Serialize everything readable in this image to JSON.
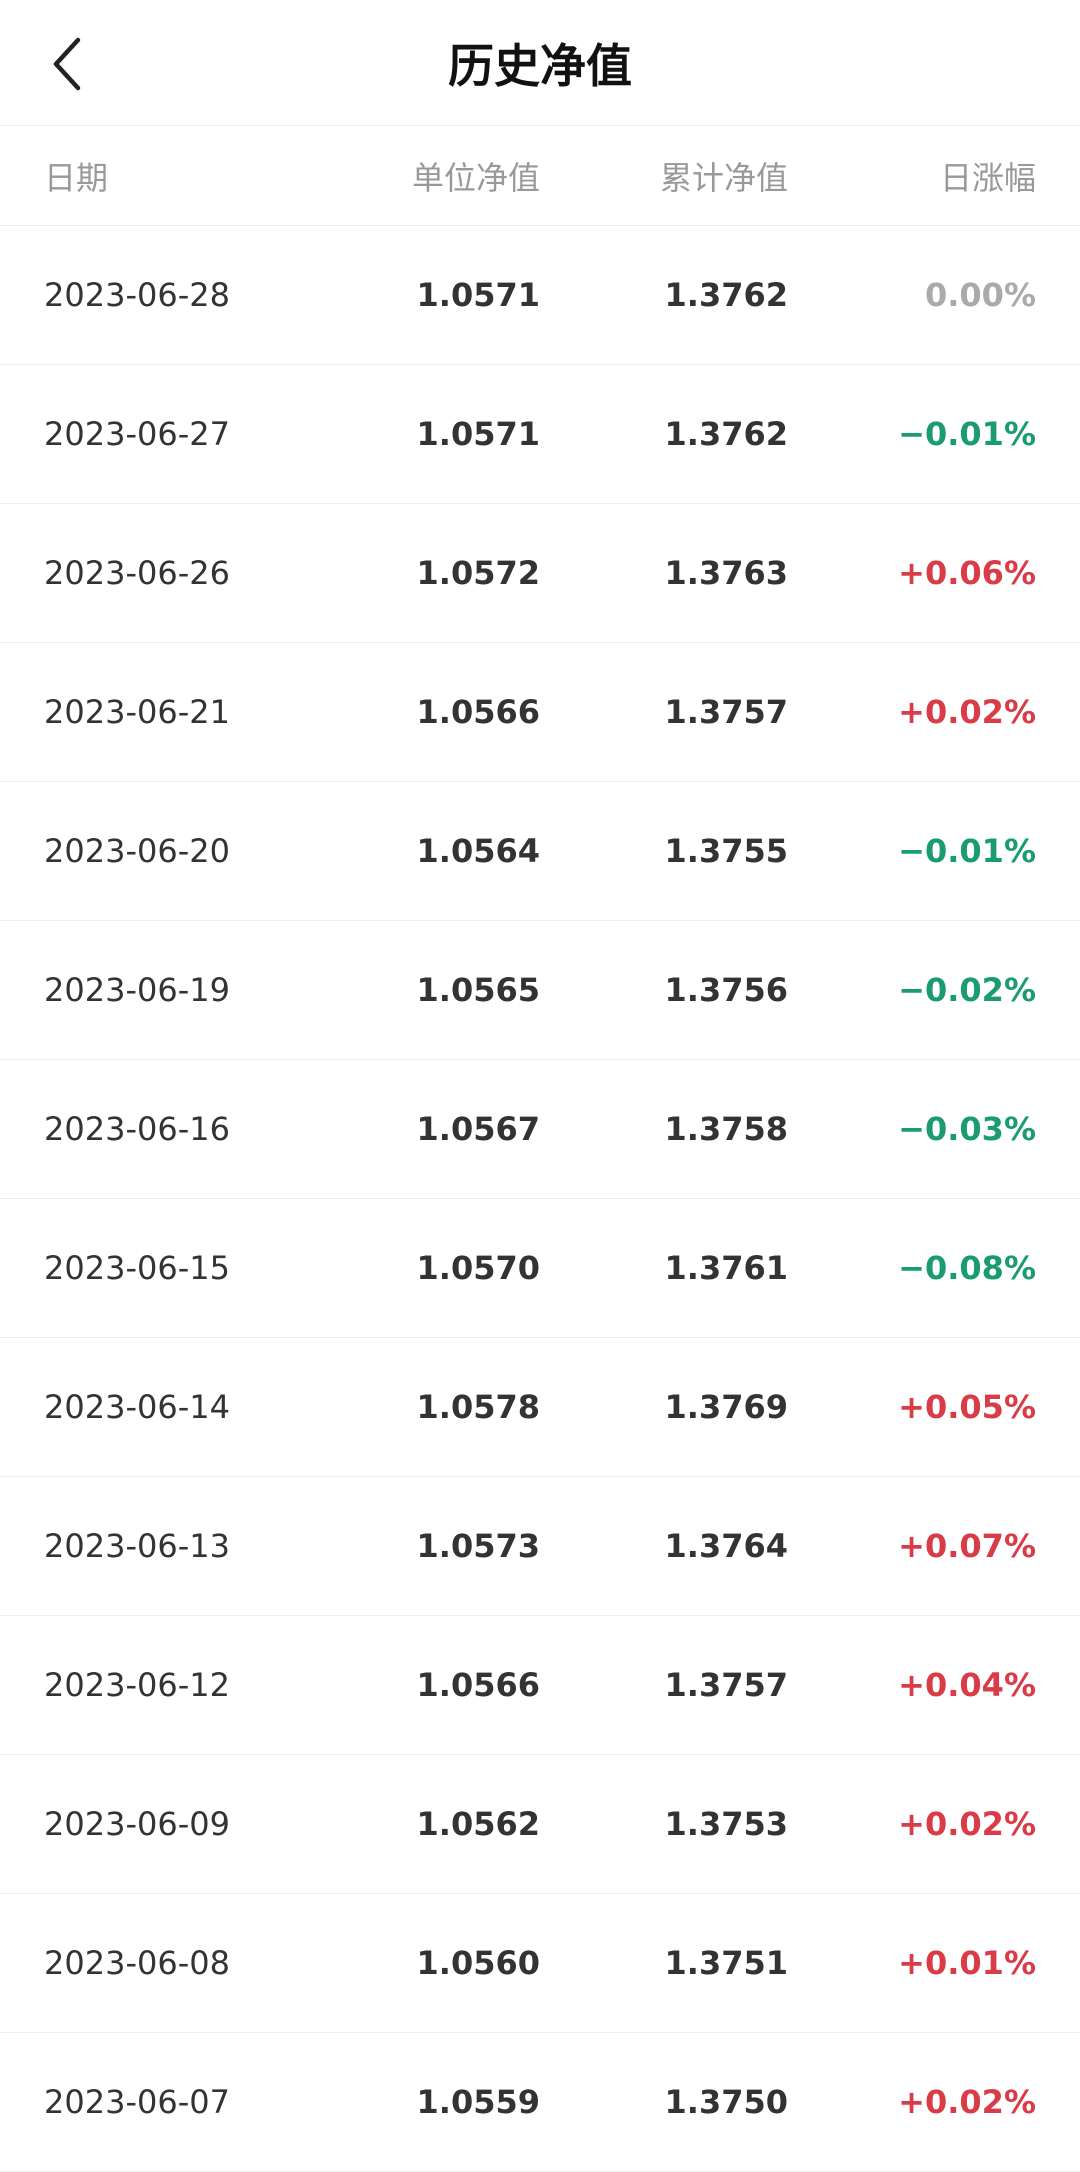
{
  "header": {
    "title": "历史净值"
  },
  "columns": {
    "date": "日期",
    "unit_nav": "单位净值",
    "acc_nav": "累计净值",
    "daily_change": "日涨幅"
  },
  "rows": [
    {
      "date": "2023-06-28",
      "unit": "1.0571",
      "acc": "1.3762",
      "change": "0.00%",
      "trend": "flat"
    },
    {
      "date": "2023-06-27",
      "unit": "1.0571",
      "acc": "1.3762",
      "change": "−0.01%",
      "trend": "down"
    },
    {
      "date": "2023-06-26",
      "unit": "1.0572",
      "acc": "1.3763",
      "change": "+0.06%",
      "trend": "up"
    },
    {
      "date": "2023-06-21",
      "unit": "1.0566",
      "acc": "1.3757",
      "change": "+0.02%",
      "trend": "up"
    },
    {
      "date": "2023-06-20",
      "unit": "1.0564",
      "acc": "1.3755",
      "change": "−0.01%",
      "trend": "down"
    },
    {
      "date": "2023-06-19",
      "unit": "1.0565",
      "acc": "1.3756",
      "change": "−0.02%",
      "trend": "down"
    },
    {
      "date": "2023-06-16",
      "unit": "1.0567",
      "acc": "1.3758",
      "change": "−0.03%",
      "trend": "down"
    },
    {
      "date": "2023-06-15",
      "unit": "1.0570",
      "acc": "1.3761",
      "change": "−0.08%",
      "trend": "down"
    },
    {
      "date": "2023-06-14",
      "unit": "1.0578",
      "acc": "1.3769",
      "change": "+0.05%",
      "trend": "up"
    },
    {
      "date": "2023-06-13",
      "unit": "1.0573",
      "acc": "1.3764",
      "change": "+0.07%",
      "trend": "up"
    },
    {
      "date": "2023-06-12",
      "unit": "1.0566",
      "acc": "1.3757",
      "change": "+0.04%",
      "trend": "up"
    },
    {
      "date": "2023-06-09",
      "unit": "1.0562",
      "acc": "1.3753",
      "change": "+0.02%",
      "trend": "up"
    },
    {
      "date": "2023-06-08",
      "unit": "1.0560",
      "acc": "1.3751",
      "change": "+0.01%",
      "trend": "up"
    },
    {
      "date": "2023-06-07",
      "unit": "1.0559",
      "acc": "1.3750",
      "change": "+0.02%",
      "trend": "up"
    }
  ]
}
